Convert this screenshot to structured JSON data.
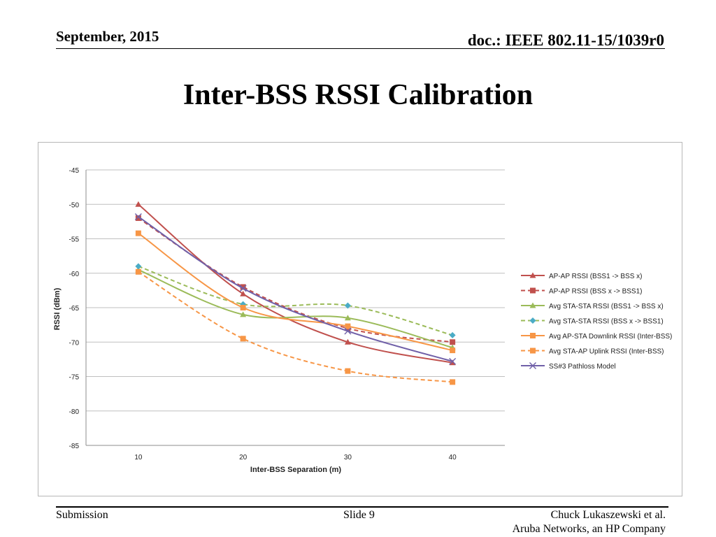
{
  "header": {
    "date": "September, 2015",
    "doc": "doc.: IEEE 802.11-15/1039r0"
  },
  "slide_title": "Inter-BSS RSSI Calibration",
  "footer": {
    "left": "Submission",
    "center": "Slide 9",
    "author": "Chuck Lukaszewski et al.",
    "company": "Aruba Networks, an HP Company"
  },
  "chart_data": {
    "type": "line",
    "xlabel": "Inter-BSS Separation (m)",
    "ylabel": "RSSI (dBm)",
    "x": [
      10,
      20,
      30,
      40
    ],
    "x_ticks": [
      "10",
      "20",
      "30",
      "40"
    ],
    "ylim": [
      -85,
      -45
    ],
    "y_ticks": [
      "-45",
      "-50",
      "-55",
      "-60",
      "-65",
      "-70",
      "-75",
      "-80",
      "-85"
    ],
    "y_tick_values": [
      -45,
      -50,
      -55,
      -60,
      -65,
      -70,
      -75,
      -80,
      -85
    ],
    "grid": true,
    "legend_position": "right",
    "series": [
      {
        "name": "AP-AP RSSI (BSS1 -> BSS x)",
        "values": [
          -50,
          -63,
          -70,
          -73
        ],
        "color": "#c0504d",
        "dash": false,
        "marker": "triangle"
      },
      {
        "name": "AP-AP RSSI (BSS x -> BSS1)",
        "values": [
          -52,
          -62,
          -68,
          -70
        ],
        "color": "#c0504d",
        "dash": true,
        "marker": "square"
      },
      {
        "name": "Avg STA-STA RSSI (BSS1 -> BSS x)",
        "values": [
          -59.5,
          -66,
          -66.5,
          -70.8
        ],
        "color": "#9bbb59",
        "dash": false,
        "marker": "triangle"
      },
      {
        "name": "Avg STA-STA RSSI (BSS x -> BSS1)",
        "values": [
          -59,
          -64.5,
          -64.7,
          -69
        ],
        "color": "#9bbb59",
        "dash": true,
        "marker": "diamond",
        "marker_color": "#4bacc6"
      },
      {
        "name": "Avg AP-STA Downlink RSSI (Inter-BSS)",
        "values": [
          -54.2,
          -65,
          -67.7,
          -71.2
        ],
        "color": "#f79646",
        "dash": false,
        "marker": "square"
      },
      {
        "name": "Avg STA-AP Uplink RSSI (Inter-BSS)",
        "values": [
          -59.8,
          -69.5,
          -74.2,
          -75.8
        ],
        "color": "#f79646",
        "dash": true,
        "marker": "square"
      },
      {
        "name": "SS#3 Pathloss Model",
        "values": [
          -51.8,
          -62.2,
          -68.4,
          -72.8
        ],
        "color": "#7060a8",
        "dash": false,
        "marker": "x"
      }
    ]
  }
}
